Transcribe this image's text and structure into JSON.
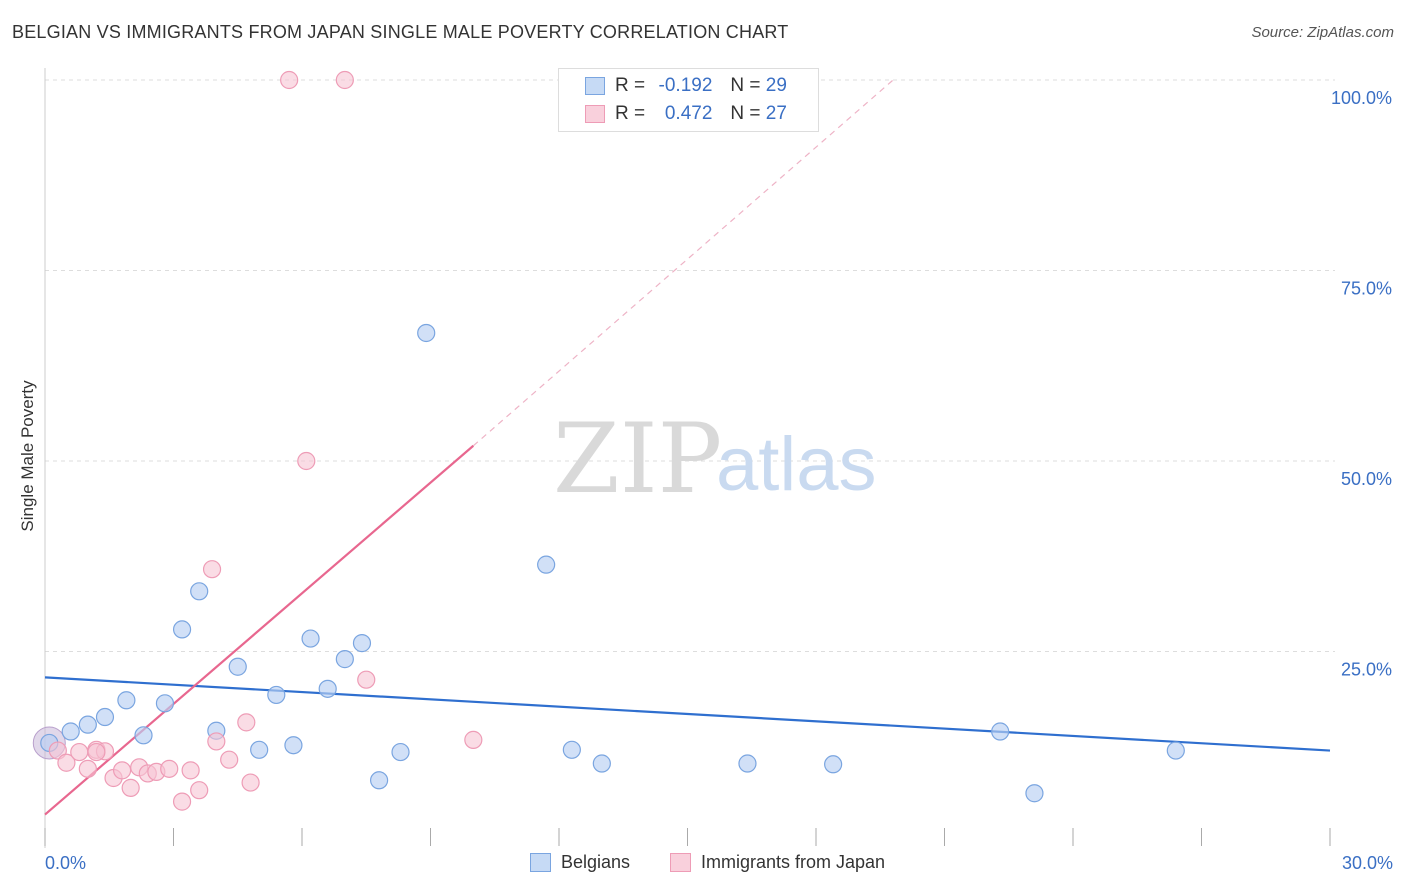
{
  "title": "BELGIAN VS IMMIGRANTS FROM JAPAN SINGLE MALE POVERTY CORRELATION CHART",
  "source": "Source: ZipAtlas.com",
  "watermark": {
    "part1": "ZIP",
    "part2": "atlas"
  },
  "legend": {
    "series1": {
      "r_label": "R =",
      "r_value": "-0.192",
      "n_label": "N =",
      "n_value": "29"
    },
    "series2": {
      "r_label": "R =",
      "r_value": "0.472",
      "n_label": "N =",
      "n_value": "27"
    }
  },
  "bottom_legend": {
    "series1": "Belgians",
    "series2": "Immigrants from Japan"
  },
  "colors": {
    "blue_fill": "#b8d0f2",
    "blue_stroke": "#7aa5e0",
    "blue_line": "#2f6fcf",
    "pink_fill": "#f6c4d3",
    "pink_stroke": "#ee9cb6",
    "pink_line": "#e8678f",
    "axis_text": "#3a6fc4",
    "grid": "#dddddd"
  },
  "chart_data": {
    "type": "scatter",
    "title": "BELGIAN VS IMMIGRANTS FROM JAPAN SINGLE MALE POVERTY CORRELATION CHART",
    "xlabel": "",
    "ylabel": "Single Male Poverty",
    "xlim": [
      0,
      30
    ],
    "ylim": [
      0,
      100
    ],
    "x_tick_labels": [
      "0.0%",
      "30.0%"
    ],
    "y_ticks": [
      25,
      50,
      75,
      100
    ],
    "y_tick_labels": [
      "25.0%",
      "50.0%",
      "75.0%",
      "100.0%"
    ],
    "grid": true,
    "legend_position": "top-center",
    "series": [
      {
        "name": "Belgians",
        "color": "#7aa5e0",
        "R": -0.192,
        "N": 29,
        "points": [
          [
            0.1,
            13.0
          ],
          [
            0.6,
            14.5
          ],
          [
            1.0,
            15.4
          ],
          [
            1.4,
            16.4
          ],
          [
            1.9,
            18.6
          ],
          [
            2.3,
            14.0
          ],
          [
            2.8,
            18.2
          ],
          [
            3.2,
            27.9
          ],
          [
            3.6,
            32.9
          ],
          [
            4.0,
            14.6
          ],
          [
            4.5,
            23.0
          ],
          [
            5.0,
            12.1
          ],
          [
            5.4,
            19.3
          ],
          [
            5.8,
            12.7
          ],
          [
            6.2,
            26.7
          ],
          [
            6.6,
            20.1
          ],
          [
            7.0,
            24.0
          ],
          [
            7.4,
            26.1
          ],
          [
            7.8,
            8.1
          ],
          [
            8.3,
            11.8
          ],
          [
            8.9,
            66.8
          ],
          [
            11.7,
            36.4
          ],
          [
            12.3,
            12.1
          ],
          [
            13.0,
            10.3
          ],
          [
            16.4,
            10.3
          ],
          [
            18.4,
            10.2
          ],
          [
            22.3,
            14.5
          ],
          [
            23.1,
            6.4
          ],
          [
            26.4,
            12.0
          ]
        ],
        "trend": {
          "x": [
            0,
            30
          ],
          "y": [
            21.6,
            12.0
          ]
        }
      },
      {
        "name": "Immigrants from Japan",
        "color": "#ee9cb6",
        "R": 0.472,
        "N": 27,
        "points": [
          [
            0.3,
            12.0
          ],
          [
            0.5,
            10.4
          ],
          [
            0.8,
            11.8
          ],
          [
            1.0,
            9.6
          ],
          [
            1.2,
            12.1
          ],
          [
            1.4,
            11.9
          ],
          [
            1.6,
            8.4
          ],
          [
            1.8,
            9.4
          ],
          [
            2.0,
            7.1
          ],
          [
            2.2,
            9.8
          ],
          [
            2.4,
            9.0
          ],
          [
            2.6,
            9.2
          ],
          [
            2.9,
            9.6
          ],
          [
            3.2,
            5.3
          ],
          [
            3.4,
            9.4
          ],
          [
            3.6,
            6.8
          ],
          [
            3.9,
            35.8
          ],
          [
            4.0,
            13.2
          ],
          [
            4.3,
            10.8
          ],
          [
            4.7,
            15.7
          ],
          [
            4.8,
            7.8
          ],
          [
            5.7,
            100.0
          ],
          [
            6.1,
            50.0
          ],
          [
            7.0,
            100.0
          ],
          [
            7.5,
            21.3
          ],
          [
            10.0,
            13.4
          ],
          [
            1.2,
            11.8
          ]
        ],
        "trend": {
          "x": [
            0,
            10.0
          ],
          "y": [
            3.6,
            52.0
          ]
        },
        "trend_extended": {
          "x": [
            10.0,
            19.8
          ],
          "y": [
            52.0,
            100.0
          ]
        }
      }
    ]
  }
}
